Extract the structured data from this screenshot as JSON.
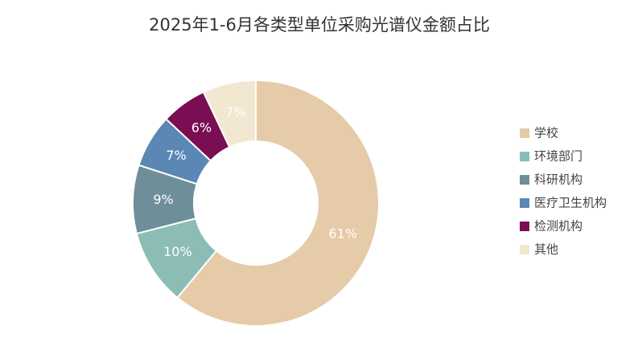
{
  "chart_data": {
    "type": "pie",
    "title": "2025年1-6月各类型单位采购光谱仪金额占比",
    "categories": [
      "学校",
      "环境部门",
      "科研机构",
      "医疗卫生机构",
      "检测机构",
      "其他"
    ],
    "values": [
      61,
      10,
      9,
      7,
      6,
      7
    ],
    "value_labels": [
      "61%",
      "10%",
      "9%",
      "7%",
      "6%",
      "7%"
    ],
    "colors": [
      "#e6cba8",
      "#8bbdb6",
      "#6e8f9a",
      "#5b87b5",
      "#7a0e52",
      "#f2e8d2"
    ],
    "legend": "right"
  }
}
